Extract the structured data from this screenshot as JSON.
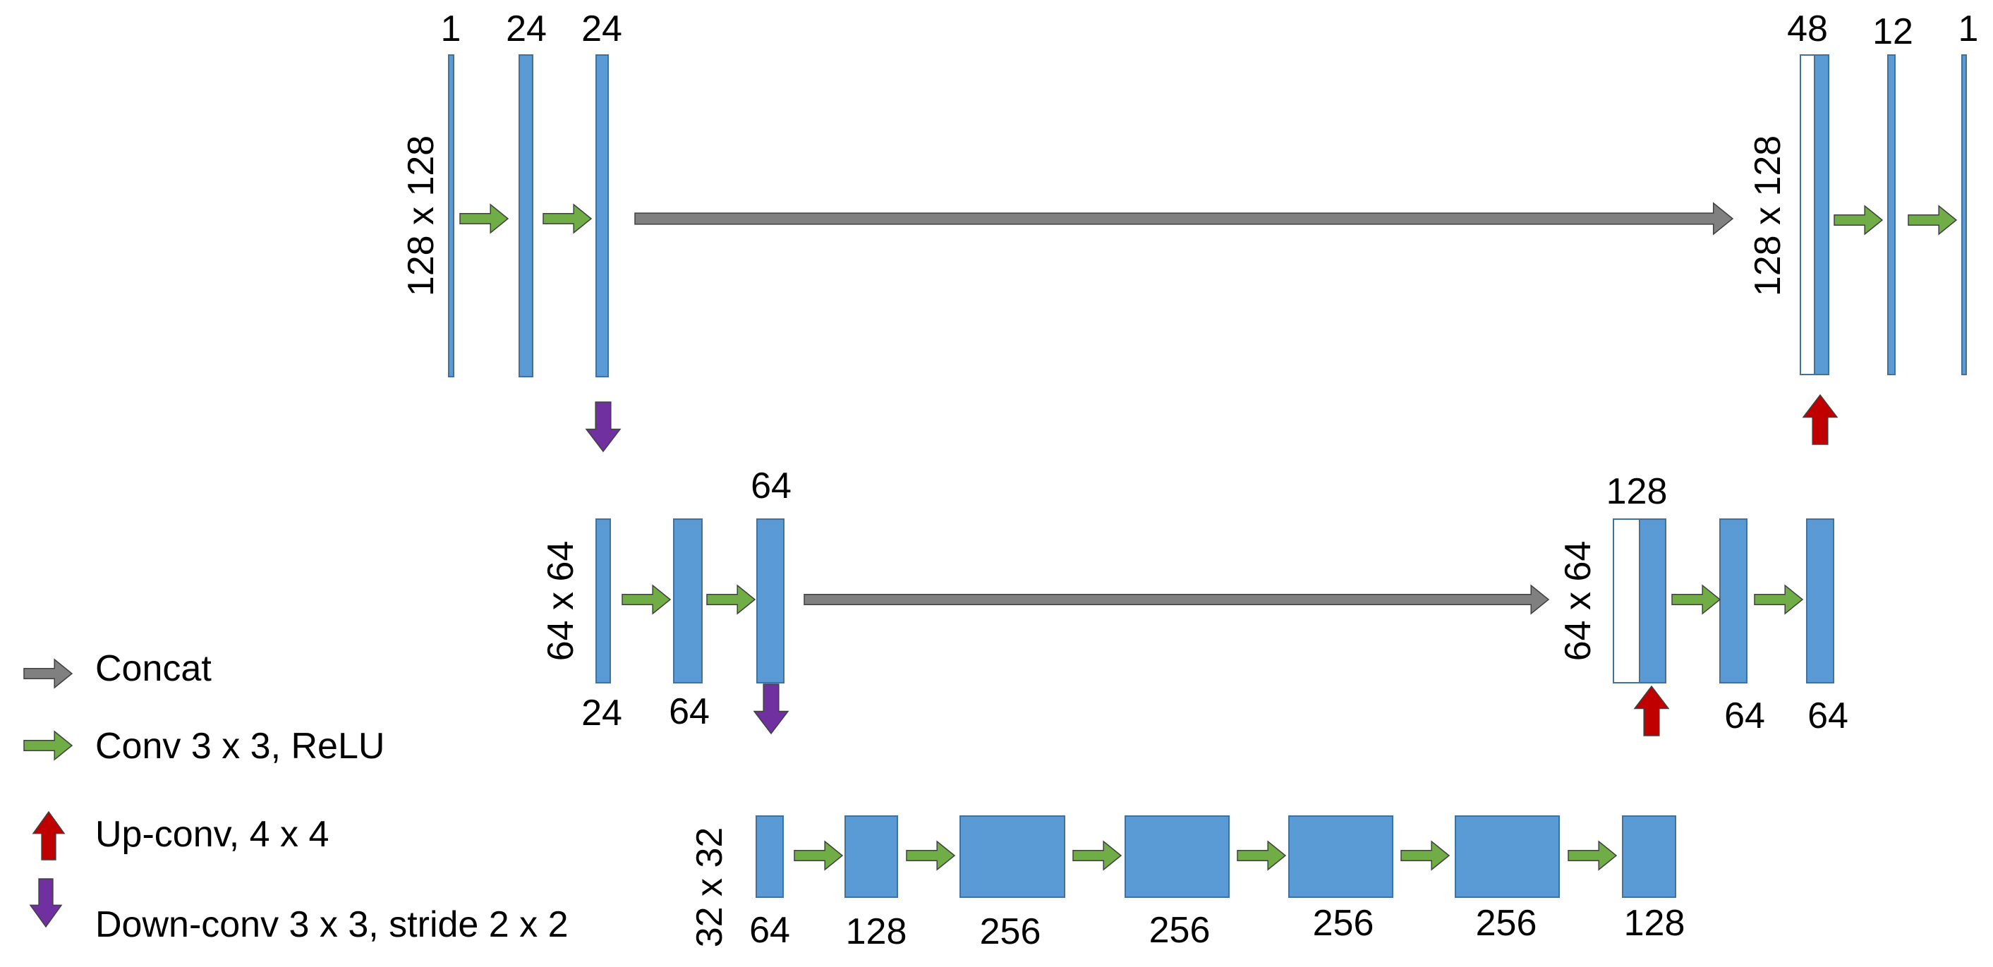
{
  "colors": {
    "feature_map": "#5b9bd5",
    "feature_map_border": "#41719c",
    "copied_map_fill": "#ffffff",
    "concat": "#808080",
    "conv": "#70ad47",
    "up_conv": "#c00000",
    "down_conv": "#7030a0"
  },
  "levels": {
    "top": {
      "size_left": "128 x 128",
      "size_right": "128 x 128",
      "channels": [
        "1",
        "24",
        "24",
        "48",
        "12",
        "1"
      ]
    },
    "mid": {
      "size_left": "64 x 64",
      "size_right": "64 x 64",
      "channels": [
        "24",
        "64",
        "64",
        "128",
        "64",
        "64"
      ]
    },
    "bottom": {
      "size_left": "32 x 32",
      "channels": [
        "64",
        "128",
        "256",
        "256",
        "256",
        "256",
        "128"
      ]
    }
  },
  "legend": [
    {
      "icon": "concat-arrow-icon",
      "label": "Concat"
    },
    {
      "icon": "conv-arrow-icon",
      "label": "Conv 3 x 3, ReLU"
    },
    {
      "icon": "up-conv-arrow-icon",
      "label": "Up-conv, 4 x 4"
    },
    {
      "icon": "down-conv-arrow-icon",
      "label": "Down-conv 3 x 3, stride 2 x 2"
    }
  ]
}
